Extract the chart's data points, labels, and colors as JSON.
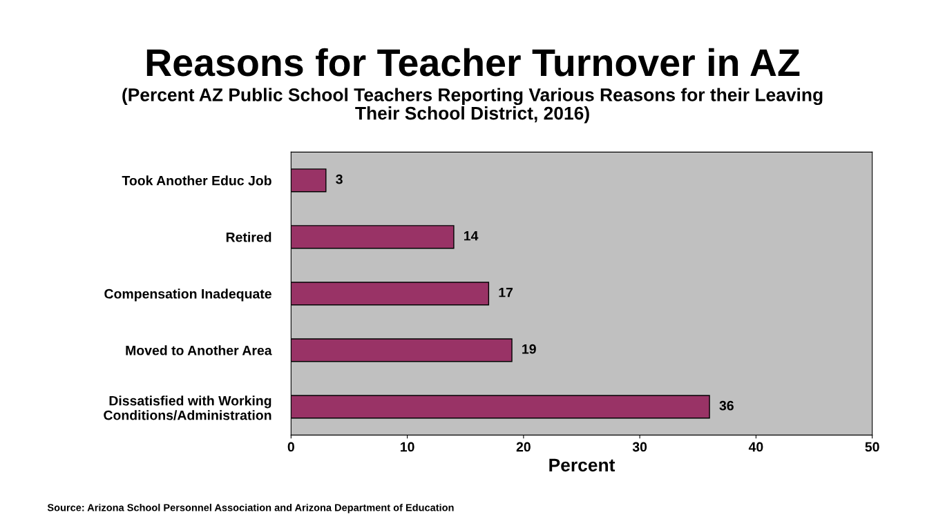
{
  "chart_data": {
    "type": "bar",
    "orientation": "horizontal",
    "title": "Reasons for Teacher Turnover in AZ",
    "subtitle": "(Percent AZ Public School Teachers Reporting Various Reasons for their Leaving\nTheir School District, 2016)",
    "xlabel": "Percent",
    "categories": [
      "Took Another Educ Job",
      "Retired",
      "Compensation Inadequate",
      "Moved to Another Area",
      "Dissatisfied with Working\nConditions/Administration"
    ],
    "values": [
      3,
      14,
      17,
      19,
      36
    ],
    "color": "#993366",
    "xlim": [
      0,
      50
    ],
    "xticks": [
      0,
      10,
      20,
      30,
      40,
      50
    ],
    "data_labels": true,
    "grid": false,
    "legend": false,
    "annotations": [
      "Source: Arizona School Personnel Association and Arizona Department of Education"
    ]
  }
}
